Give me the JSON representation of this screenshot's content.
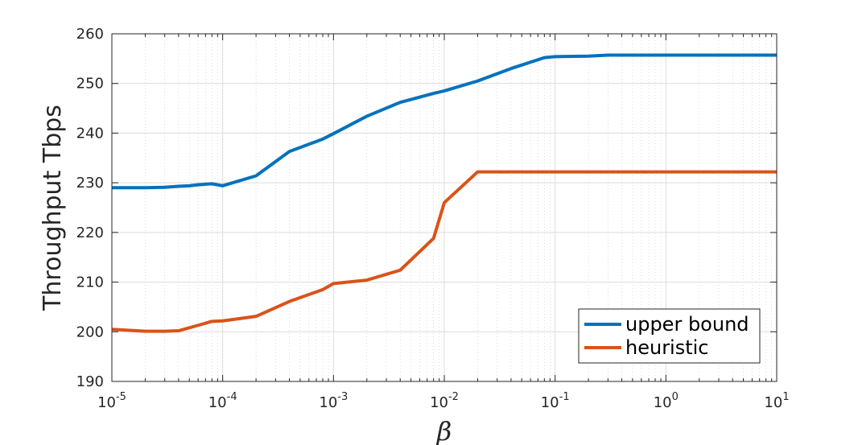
{
  "chart_data": {
    "type": "line",
    "title": "",
    "xlabel": "β",
    "ylabel": "Throughput Tbps",
    "xscale": "log",
    "xlim": [
      1e-05,
      10
    ],
    "ylim": [
      190,
      260
    ],
    "xticks": [
      1e-05,
      0.0001,
      0.001,
      0.01,
      0.1,
      1,
      10
    ],
    "xtick_labels": [
      {
        "base": "10",
        "exp": "-5"
      },
      {
        "base": "10",
        "exp": "-4"
      },
      {
        "base": "10",
        "exp": "-3"
      },
      {
        "base": "10",
        "exp": "-2"
      },
      {
        "base": "10",
        "exp": "-1"
      },
      {
        "base": "10",
        "exp": "0"
      },
      {
        "base": "10",
        "exp": "1"
      }
    ],
    "yticks": [
      190,
      200,
      210,
      220,
      230,
      240,
      250,
      260
    ],
    "ytick_labels": [
      "190",
      "200",
      "210",
      "220",
      "230",
      "240",
      "250",
      "260"
    ],
    "grid": true,
    "legend_position": "bottom-right",
    "series": [
      {
        "name": "upper bound",
        "color": "#0072BD",
        "x": [
          1e-05,
          2e-05,
          3e-05,
          4e-05,
          5e-05,
          6e-05,
          8e-05,
          0.0001,
          0.0002,
          0.0004,
          0.0008,
          0.001,
          0.002,
          0.004,
          0.008,
          0.01,
          0.02,
          0.04,
          0.08,
          0.1,
          0.2,
          0.3,
          1,
          10
        ],
        "y": [
          229.0,
          229.0,
          229.1,
          229.3,
          229.4,
          229.6,
          229.8,
          229.4,
          231.4,
          236.3,
          238.8,
          239.9,
          243.4,
          246.2,
          248.0,
          248.5,
          250.5,
          253.0,
          255.2,
          255.4,
          255.5,
          255.7,
          255.7,
          255.7
        ]
      },
      {
        "name": "heuristic",
        "color": "#D95319",
        "x": [
          1e-05,
          2e-05,
          3e-05,
          4e-05,
          6e-05,
          8e-05,
          0.0001,
          0.0002,
          0.0004,
          0.0008,
          0.001,
          0.002,
          0.004,
          0.008,
          0.01,
          0.02,
          0.1,
          1,
          10
        ],
        "y": [
          200.5,
          200.1,
          200.1,
          200.2,
          201.3,
          202.1,
          202.2,
          203.1,
          206.1,
          208.5,
          209.7,
          210.4,
          212.4,
          218.8,
          226.0,
          232.2,
          232.2,
          232.2,
          232.2
        ]
      }
    ]
  }
}
